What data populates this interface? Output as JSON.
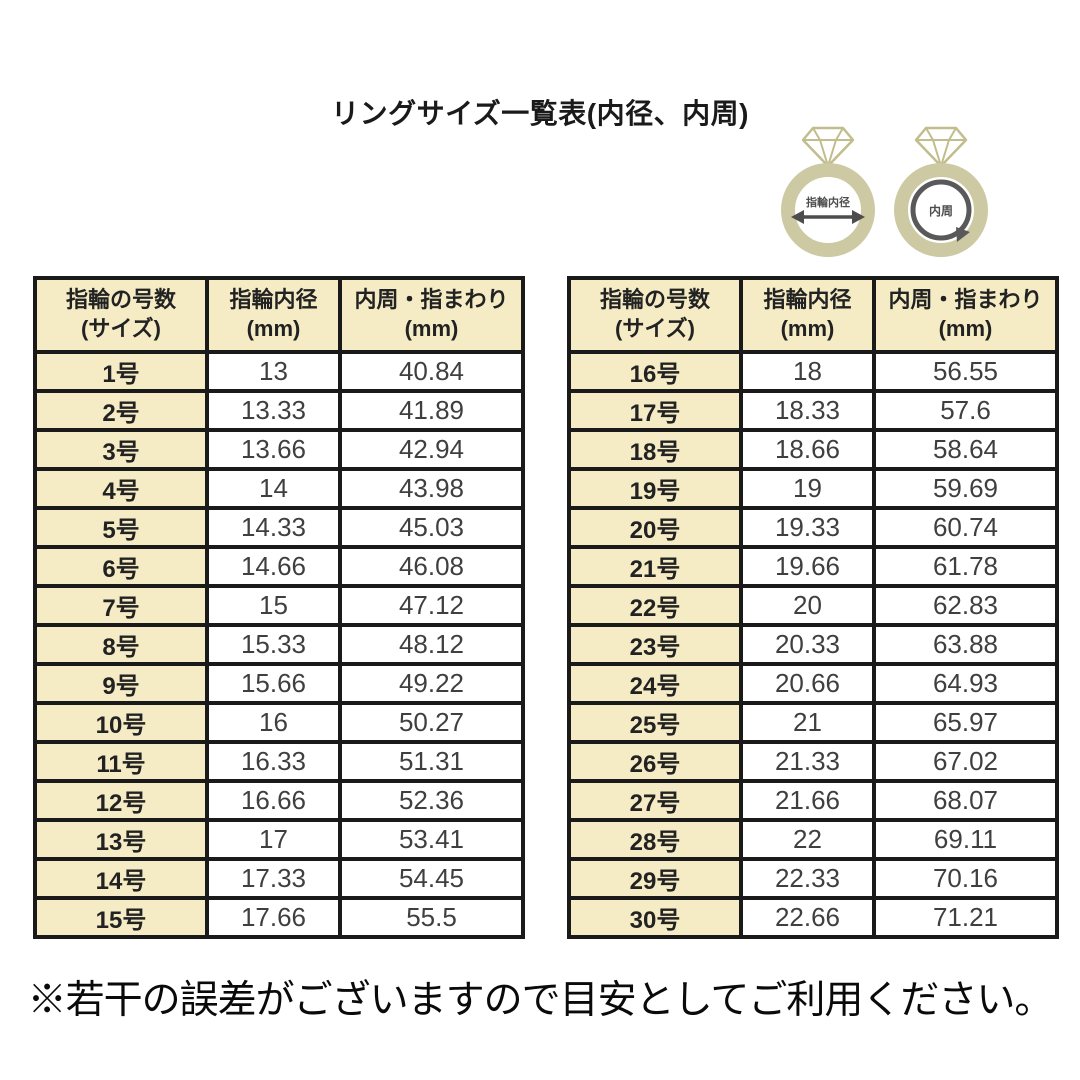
{
  "title": "リングサイズ一覧表(内径、内周)",
  "note": "※若干の誤差がございますので目安としてご利用ください。",
  "illustration": {
    "left_ring_label": "指輪内径",
    "right_ring_label": "内周"
  },
  "table_headers": [
    {
      "line1": "指輪の号数",
      "line2": "(サイズ)"
    },
    {
      "line1": "指輪内径",
      "line2": "(mm)"
    },
    {
      "line1": "内周・指まわり",
      "line2": "(mm)"
    }
  ],
  "colors": {
    "header_bg": "#f5ecc6",
    "border": "#1a1a1a",
    "num_text": "#3f3f3f",
    "label_text": "#222222",
    "band": "#cdc9a3",
    "diamond": "#c1bd8d",
    "annotation": "#4d4d4d",
    "page_bg": "#ffffff"
  },
  "chart_data": [
    {
      "type": "table",
      "title": "リングサイズ一覧表(内径、内周) 1号〜15号",
      "columns": [
        "指輪の号数(サイズ)",
        "指輪内径(mm)",
        "内周・指まわり(mm)"
      ],
      "rows": [
        [
          "1号",
          "13",
          "40.84"
        ],
        [
          "2号",
          "13.33",
          "41.89"
        ],
        [
          "3号",
          "13.66",
          "42.94"
        ],
        [
          "4号",
          "14",
          "43.98"
        ],
        [
          "5号",
          "14.33",
          "45.03"
        ],
        [
          "6号",
          "14.66",
          "46.08"
        ],
        [
          "7号",
          "15",
          "47.12"
        ],
        [
          "8号",
          "15.33",
          "48.12"
        ],
        [
          "9号",
          "15.66",
          "49.22"
        ],
        [
          "10号",
          "16",
          "50.27"
        ],
        [
          "11号",
          "16.33",
          "51.31"
        ],
        [
          "12号",
          "16.66",
          "52.36"
        ],
        [
          "13号",
          "17",
          "53.41"
        ],
        [
          "14号",
          "17.33",
          "54.45"
        ],
        [
          "15号",
          "17.66",
          "55.5"
        ]
      ]
    },
    {
      "type": "table",
      "title": "リングサイズ一覧表(内径、内周) 16号〜30号",
      "columns": [
        "指輪の号数(サイズ)",
        "指輪内径(mm)",
        "内周・指まわり(mm)"
      ],
      "rows": [
        [
          "16号",
          "18",
          "56.55"
        ],
        [
          "17号",
          "18.33",
          "57.6"
        ],
        [
          "18号",
          "18.66",
          "58.64"
        ],
        [
          "19号",
          "19",
          "59.69"
        ],
        [
          "20号",
          "19.33",
          "60.74"
        ],
        [
          "21号",
          "19.66",
          "61.78"
        ],
        [
          "22号",
          "20",
          "62.83"
        ],
        [
          "23号",
          "20.33",
          "63.88"
        ],
        [
          "24号",
          "20.66",
          "64.93"
        ],
        [
          "25号",
          "21",
          "65.97"
        ],
        [
          "26号",
          "21.33",
          "67.02"
        ],
        [
          "27号",
          "21.66",
          "68.07"
        ],
        [
          "28号",
          "22",
          "69.11"
        ],
        [
          "29号",
          "22.33",
          "70.16"
        ],
        [
          "30号",
          "22.66",
          "71.21"
        ]
      ]
    }
  ]
}
